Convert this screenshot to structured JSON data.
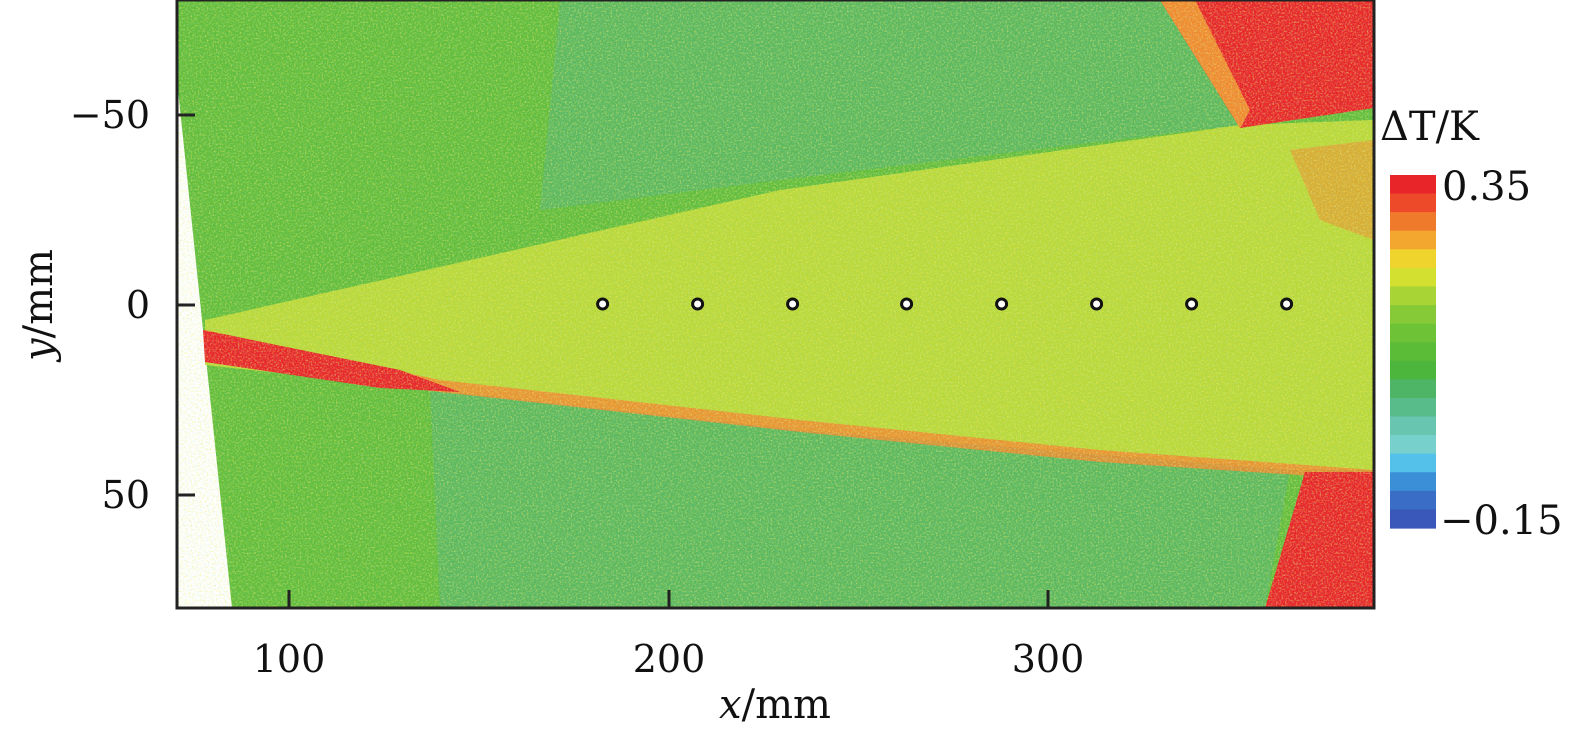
{
  "chart_data": {
    "type": "heatmap",
    "title": "",
    "xlabel": {
      "var": "x",
      "unit": "/mm"
    },
    "ylabel": {
      "var": "y",
      "unit": "/mm"
    },
    "xlim": [
      70,
      385
    ],
    "ylim": [
      80,
      -80
    ],
    "x_ticks": [
      {
        "value": 100,
        "label": "100"
      },
      {
        "value": 200,
        "label": "200"
      },
      {
        "value": 300,
        "label": "300"
      }
    ],
    "y_ticks": [
      {
        "value": -50,
        "label": "−50"
      },
      {
        "value": 0,
        "label": "0"
      },
      {
        "value": 50,
        "label": "50"
      }
    ],
    "colorbar": {
      "label": {
        "prefix": "Δ",
        "var": "T",
        "unit": "/K"
      },
      "max_label": "0.35",
      "min_label": "−0.15",
      "min": -0.15,
      "max": 0.35,
      "colors": [
        "#e8262a",
        "#ed4a2a",
        "#f07a2c",
        "#f3a72f",
        "#f0d42e",
        "#d4e02f",
        "#a8d535",
        "#86cb37",
        "#6dc235",
        "#5bbc37",
        "#4cb53b",
        "#4db565",
        "#58bb8a",
        "#68c6b0",
        "#78d0cd",
        "#53c1ea",
        "#3a8fd6",
        "#3a6dc6",
        "#3a58b9"
      ]
    },
    "field_colors": {
      "background": "#62bd3d",
      "outer_band": "#5cb85e",
      "wake": "#b9d83a",
      "shear_edge": "#f08a30",
      "hot": "#e8262a",
      "hot_dark": "#d81f25"
    },
    "sensor_points": {
      "y": 0,
      "x": [
        182,
        207,
        232,
        262,
        287,
        312,
        337,
        362
      ]
    }
  }
}
